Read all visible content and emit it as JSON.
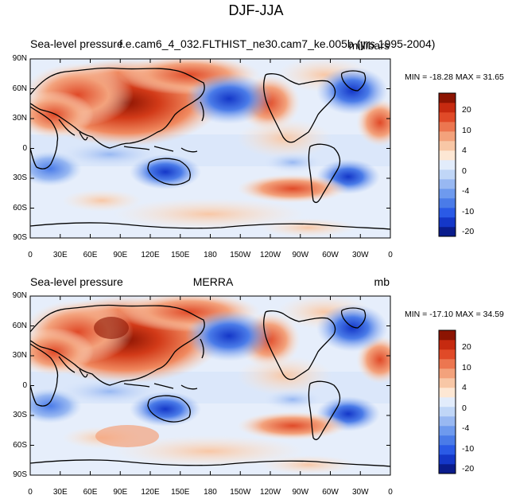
{
  "title": "DJF-JJA",
  "panels": [
    {
      "left_label": "Sea-level pressure",
      "center_label": "f.e.cam6_4_032.FLTHIST_ne30.cam7_ke.005b (yrs 1995-2004)",
      "right_label": "millibars",
      "min_max": "MIN = -18.28 MAX =  31.65"
    },
    {
      "left_label": "Sea-level pressure",
      "center_label": "MERRA",
      "right_label": "mb",
      "min_max": "MIN = -17.10 MAX =  34.59"
    }
  ],
  "lat_labels": [
    "90N",
    "60N",
    "30N",
    "0",
    "30S",
    "60S",
    "90S"
  ],
  "lon_labels": [
    "0",
    "30E",
    "60E",
    "90E",
    "120E",
    "150E",
    "180",
    "150W",
    "120W",
    "90W",
    "60W",
    "30W",
    "0"
  ],
  "colorbar": {
    "labels": [
      "20",
      "10",
      "4",
      "0",
      "-4",
      "-10",
      "-20"
    ],
    "colors": [
      "#0a1c8c",
      "#1437c8",
      "#2a5ae6",
      "#4a7be8",
      "#6e9aee",
      "#98b8f2",
      "#c0d6f7",
      "#e2ecfb",
      "#fde7d4",
      "#f8c7a6",
      "#f3a27c",
      "#ec7650",
      "#e04a28",
      "#c62a10",
      "#8c1402"
    ]
  }
}
